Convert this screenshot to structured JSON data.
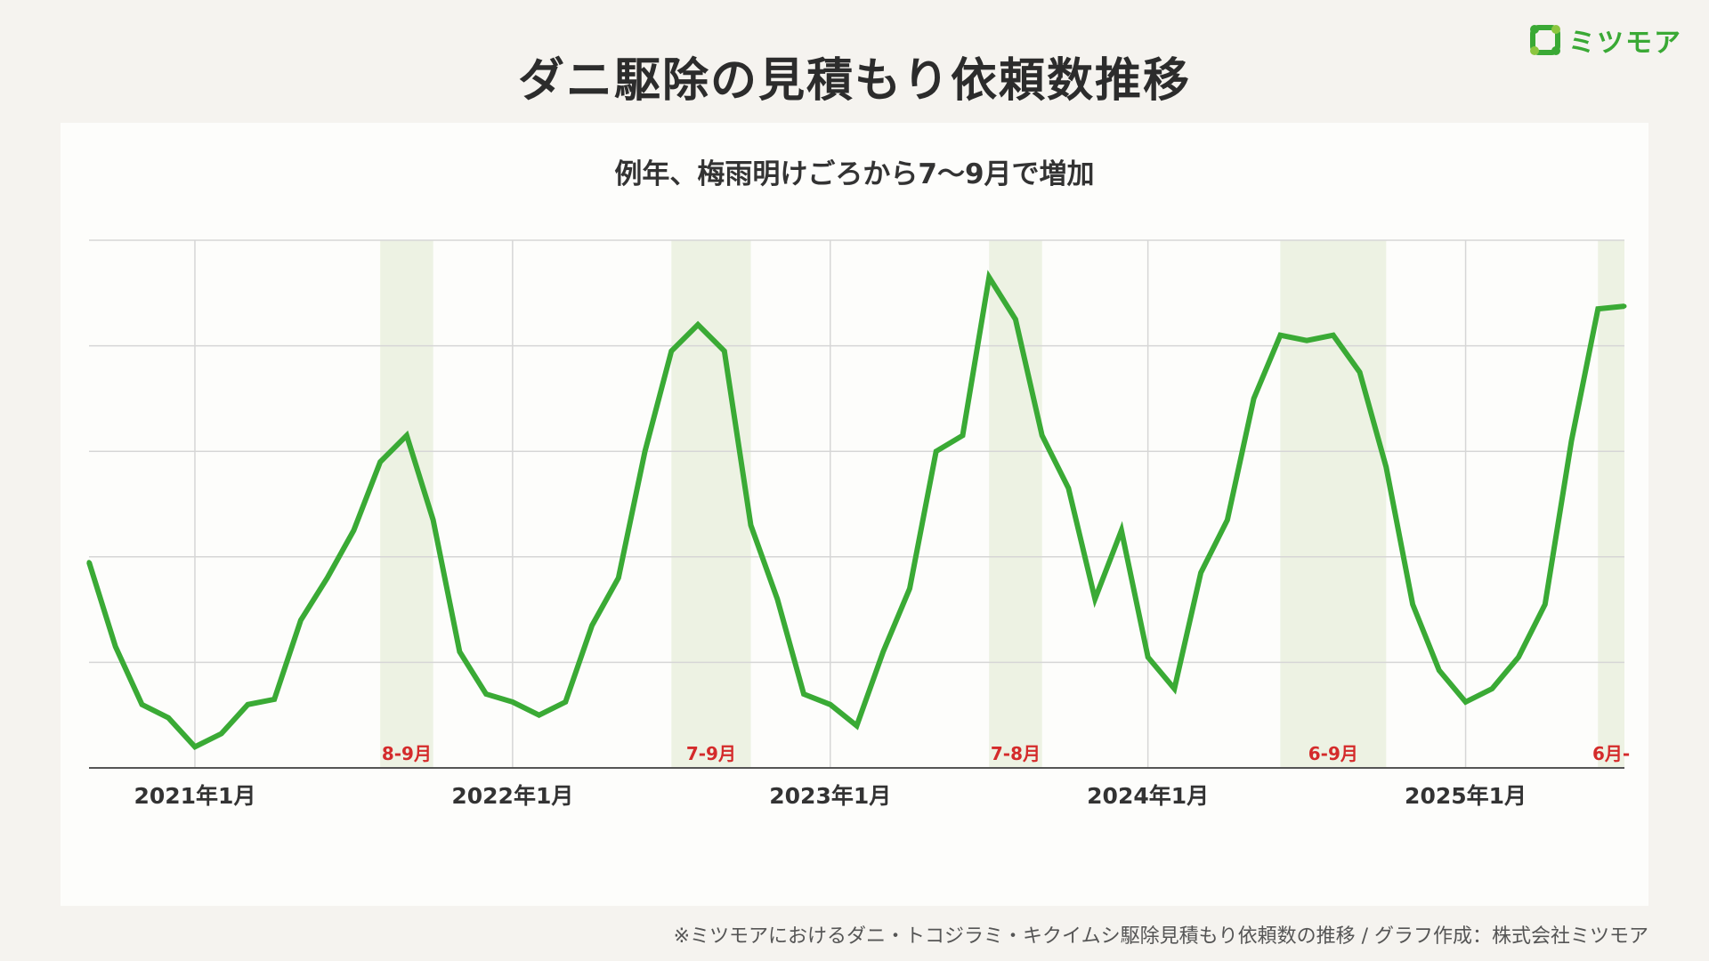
{
  "header": {
    "title": "ダニ駆除の見積もり依頼数推移",
    "logo_text": "ミツモア",
    "logo_icon": "mitsumoa-logo-icon"
  },
  "footnote": "※ミツモアにおけるダニ・トコジラミ・キクイムシ駆除見積もり依頼数の推移 / グラフ作成：株式会社ミツモア",
  "colors": {
    "line": "#3aaa35",
    "band": "#edf2e3",
    "highlight_label": "#d42b2b",
    "grid": "#d6d6d6"
  },
  "chart_data": {
    "type": "line",
    "title": "例年、梅雨明けごろから7〜9月で増加",
    "xlabel": "",
    "ylabel": "",
    "grid": true,
    "y_tick_labels": false,
    "ylim": [
      0,
      100
    ],
    "x_start": "2020-09",
    "x_end": "2025-07",
    "x_ticks": [
      {
        "date": "2021-01",
        "label": "2021年1月"
      },
      {
        "date": "2022-01",
        "label": "2022年1月"
      },
      {
        "date": "2023-01",
        "label": "2023年1月"
      },
      {
        "date": "2024-01",
        "label": "2024年1月"
      },
      {
        "date": "2025-01",
        "label": "2025年1月"
      }
    ],
    "highlight_ranges": [
      {
        "start": "2021-08",
        "end": "2021-10",
        "label": "8-9月"
      },
      {
        "start": "2022-07",
        "end": "2022-10",
        "label": "7-9月"
      },
      {
        "start": "2023-07",
        "end": "2023-09",
        "label": "7-8月"
      },
      {
        "start": "2024-06",
        "end": "2024-10",
        "label": "6-9月"
      },
      {
        "start": "2025-06",
        "end": "2025-07",
        "label": "6月-"
      }
    ],
    "x": [
      "2020-09",
      "2020-10",
      "2020-11",
      "2020-12",
      "2021-01",
      "2021-02",
      "2021-03",
      "2021-04",
      "2021-05",
      "2021-06",
      "2021-07",
      "2021-08",
      "2021-09",
      "2021-10",
      "2021-11",
      "2021-12",
      "2022-01",
      "2022-02",
      "2022-03",
      "2022-04",
      "2022-05",
      "2022-06",
      "2022-07",
      "2022-08",
      "2022-09",
      "2022-10",
      "2022-11",
      "2022-12",
      "2023-01",
      "2023-02",
      "2023-03",
      "2023-04",
      "2023-05",
      "2023-06",
      "2023-07",
      "2023-08",
      "2023-09",
      "2023-10",
      "2023-11",
      "2023-12",
      "2024-01",
      "2024-02",
      "2024-03",
      "2024-04",
      "2024-05",
      "2024-06",
      "2024-07",
      "2024-08",
      "2024-09",
      "2024-10",
      "2024-11",
      "2024-12",
      "2025-01",
      "2025-02",
      "2025-03",
      "2025-04",
      "2025-05",
      "2025-06",
      "2025-07"
    ],
    "series": [
      {
        "values": [
          39,
          23,
          12,
          9.5,
          4,
          6.5,
          12,
          13,
          28,
          36,
          45,
          58,
          63,
          47,
          22,
          14,
          12.5,
          10,
          12.5,
          27,
          36,
          60,
          79,
          84,
          79,
          46,
          32,
          14,
          12,
          8,
          22,
          34,
          60,
          63,
          93,
          85,
          63,
          53,
          32,
          45,
          21,
          15,
          37,
          47,
          70,
          82,
          81,
          82,
          75,
          57,
          31,
          18.5,
          12.5,
          15,
          21,
          31,
          62,
          87,
          87.5
        ]
      }
    ]
  }
}
